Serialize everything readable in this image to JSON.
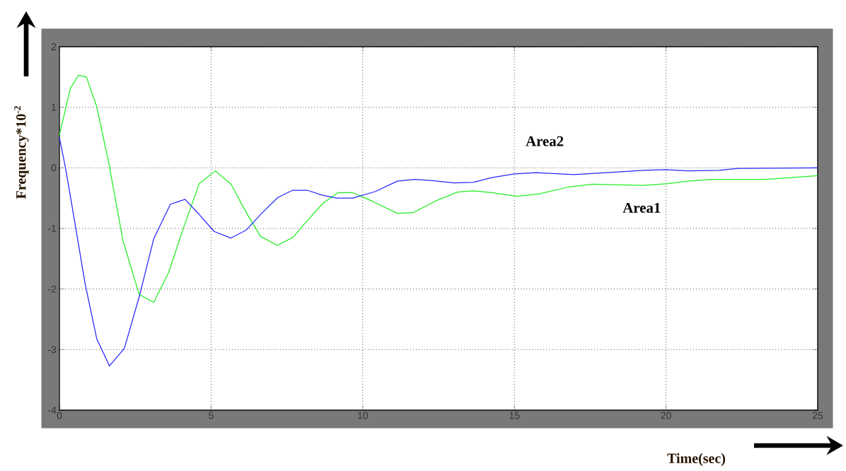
{
  "chart_data": {
    "type": "line",
    "xlabel": "Time(sec)",
    "ylabel": "Frequency*10$^{-2}$",
    "xlim": [
      0,
      25
    ],
    "ylim": [
      -4,
      2
    ],
    "xticks": [
      0,
      5,
      10,
      15,
      20,
      25
    ],
    "yticks": [
      -4,
      -3,
      -2,
      -1,
      0,
      1,
      2
    ],
    "grid": true,
    "series": [
      {
        "name": "Area1",
        "color": "#22ee22",
        "x": [
          0,
          0.36,
          0.63,
          0.89,
          1.23,
          1.62,
          2.1,
          2.63,
          3.11,
          3.6,
          4.09,
          4.61,
          5.14,
          5.66,
          6.15,
          6.63,
          7.18,
          7.69,
          8.21,
          8.7,
          9.18,
          9.67,
          10.31,
          11.14,
          11.66,
          12.39,
          13.12,
          13.64,
          14.26,
          15.09,
          15.82,
          16.76,
          17.59,
          18.42,
          19.25,
          20.08,
          20.7,
          21.54,
          23.3,
          25
        ],
        "values": [
          0.54,
          1.31,
          1.53,
          1.5,
          1.01,
          0.1,
          -1.21,
          -2.09,
          -2.22,
          -1.73,
          -0.99,
          -0.26,
          -0.05,
          -0.27,
          -0.73,
          -1.13,
          -1.28,
          -1.15,
          -0.85,
          -0.58,
          -0.41,
          -0.41,
          -0.55,
          -0.75,
          -0.74,
          -0.55,
          -0.4,
          -0.38,
          -0.41,
          -0.47,
          -0.43,
          -0.32,
          -0.27,
          -0.28,
          -0.29,
          -0.26,
          -0.22,
          -0.19,
          -0.19,
          -0.13
        ]
      },
      {
        "name": "Area2",
        "color": "#2626ff",
        "x": [
          0,
          0.2,
          0.49,
          0.85,
          1.23,
          1.65,
          2.14,
          2.63,
          3.11,
          3.66,
          4.14,
          4.61,
          5.1,
          5.65,
          6.15,
          6.67,
          7.2,
          7.69,
          8.17,
          8.66,
          9.14,
          9.67,
          10.42,
          11.14,
          11.72,
          12.29,
          13.01,
          13.64,
          14.26,
          15,
          15.72,
          16.96,
          18.32,
          19.25,
          20,
          20.7,
          21.75,
          22.37,
          25
        ],
        "values": [
          0.5,
          0,
          -0.85,
          -1.92,
          -2.82,
          -3.27,
          -2.98,
          -2.13,
          -1.17,
          -0.6,
          -0.52,
          -0.77,
          -1.05,
          -1.16,
          -1.03,
          -0.75,
          -0.49,
          -0.37,
          -0.37,
          -0.45,
          -0.5,
          -0.5,
          -0.39,
          -0.22,
          -0.19,
          -0.21,
          -0.25,
          -0.24,
          -0.16,
          -0.1,
          -0.08,
          -0.11,
          -0.07,
          -0.04,
          -0.03,
          -0.05,
          -0.04,
          -0.01,
          0
        ]
      }
    ]
  }
}
